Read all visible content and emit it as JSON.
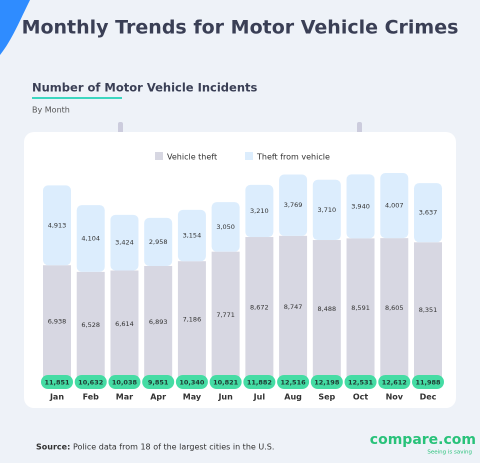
{
  "header": {
    "title": "Monthly Trends for Motor Vehicle Crimes"
  },
  "chart_data": {
    "type": "stacked_bar",
    "title": "Number of Motor Vehicle Incidents",
    "subtitle": "By Month",
    "categories": [
      "Jan",
      "Feb",
      "Mar",
      "Apr",
      "May",
      "Jun",
      "Jul",
      "Aug",
      "Sep",
      "Oct",
      "Nov",
      "Dec"
    ],
    "series": [
      {
        "name": "Vehicle theft",
        "color": "#d7d7e2",
        "values": [
          6938,
          6528,
          6614,
          6893,
          7186,
          7771,
          8672,
          8747,
          8488,
          8591,
          8605,
          8351
        ],
        "value_labels": [
          "6,938",
          "6,528",
          "6,614",
          "6,893",
          "7,186",
          "7,771",
          "8,672",
          "8,747",
          "8,488",
          "8,591",
          "8,605",
          "8,351"
        ]
      },
      {
        "name": "Theft from vehicle",
        "color": "#dcedfd",
        "values": [
          4913,
          4104,
          3424,
          2958,
          3154,
          3050,
          3210,
          3769,
          3710,
          3940,
          4007,
          3637
        ],
        "value_labels": [
          "4,913",
          "4,104",
          "3,424",
          "2,958",
          "3,154",
          "3,050",
          "3,210",
          "3,769",
          "3,710",
          "3,940",
          "4,007",
          "3,637"
        ]
      }
    ],
    "totals": [
      11851,
      10632,
      10038,
      9851,
      10340,
      10821,
      11882,
      12516,
      12198,
      12531,
      12612,
      11988
    ],
    "total_labels": [
      "11,851",
      "10,632",
      "10,038",
      "9,851",
      "10,340",
      "10,821",
      "11,882",
      "12,516",
      "12,198",
      "12,531",
      "12,612",
      "11,988"
    ],
    "total_color": "#45dca4",
    "legend": "top"
  },
  "footer": {
    "source_label": "Source:",
    "source": "Police data from 18 of the largest cities in the U.S.",
    "logo": "compare.com",
    "tagline": "Seeing is saving"
  }
}
